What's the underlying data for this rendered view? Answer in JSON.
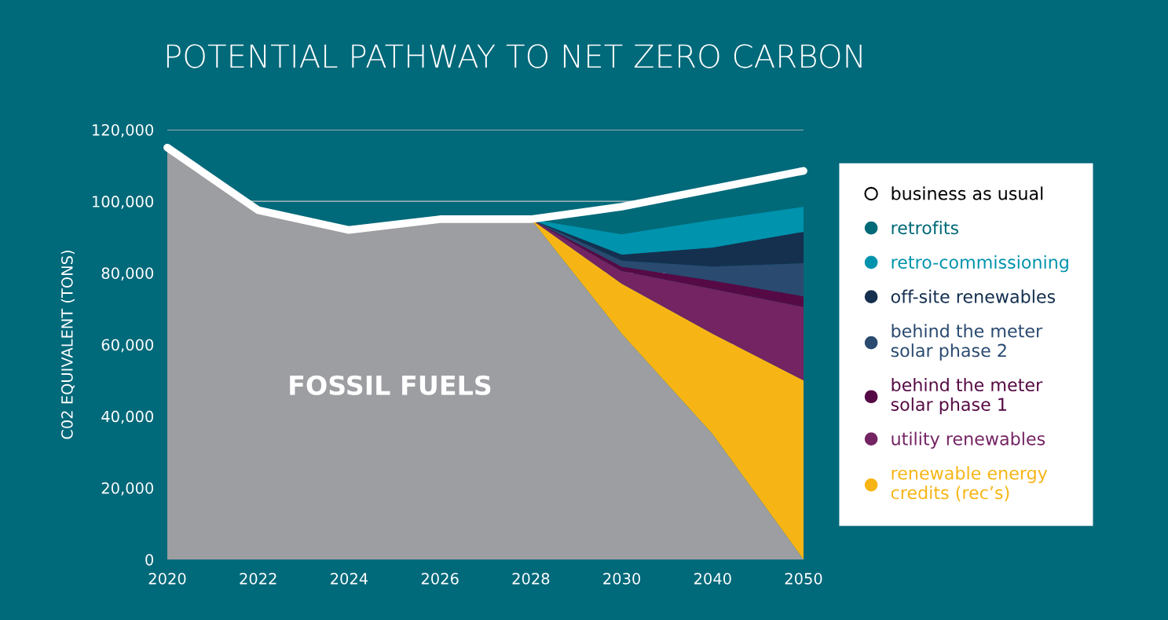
{
  "chart_data": {
    "type": "area",
    "stacked": true,
    "title": "POTENTIAL PATHWAY TO NET ZERO CARBON",
    "ylabel": "C02 EQUIVALENT (TONS)",
    "categories": [
      "2020",
      "2022",
      "2024",
      "2026",
      "2028",
      "2030",
      "2040",
      "2050"
    ],
    "series": [
      {
        "name": "FOSSIL FUELS",
        "color": "#9d9ea2",
        "values": [
          115000,
          97500,
          92000,
          95000,
          95000,
          63000,
          35000,
          0
        ]
      },
      {
        "name": "renewable energy\ncredits (rec’s)",
        "color": "#f7b515",
        "values": [
          null,
          null,
          null,
          null,
          0,
          14000,
          28000,
          50000
        ]
      },
      {
        "name": "utility renewables",
        "color": "#742463",
        "values": [
          null,
          null,
          null,
          null,
          0,
          3500,
          12500,
          20500
        ]
      },
      {
        "name": "behind the meter\nsolar phase 1",
        "color": "#560a45",
        "values": [
          null,
          null,
          null,
          null,
          0,
          1300,
          2400,
          3000
        ]
      },
      {
        "name": "behind the meter\nsolar phase 2",
        "color": "#2a4a70",
        "values": [
          null,
          null,
          null,
          null,
          0,
          1600,
          3900,
          9200
        ]
      },
      {
        "name": "off-site renewables",
        "color": "#15304f",
        "values": [
          null,
          null,
          null,
          null,
          0,
          1700,
          5300,
          8800
        ]
      },
      {
        "name": "retro-commissioning",
        "color": "#0093ad",
        "values": [
          null,
          null,
          null,
          null,
          0,
          5700,
          7700,
          7000
        ]
      },
      {
        "name": "retrofits",
        "color": "#006a79",
        "values": [
          null,
          null,
          null,
          null,
          0,
          7700,
          8700,
          9800
        ]
      },
      {
        "name": "business as usual",
        "type": "line",
        "color": "#ffffff",
        "values": [
          115000,
          97500,
          92000,
          95000,
          95000,
          98500,
          103500,
          108500
        ]
      }
    ],
    "ylim": [
      0,
      120000
    ],
    "yticks": [
      0,
      {
        "value": 20000,
        "label": "20,000"
      },
      {
        "value": 40000,
        "label": "40,000"
      },
      {
        "value": 60000,
        "label": "60,000"
      },
      {
        "value": 80000,
        "label": "80,000"
      },
      {
        "value": 100000,
        "label": "100,000"
      },
      {
        "value": 120000,
        "label": "120,000"
      }
    ],
    "grid": "y",
    "legend": "right"
  }
}
